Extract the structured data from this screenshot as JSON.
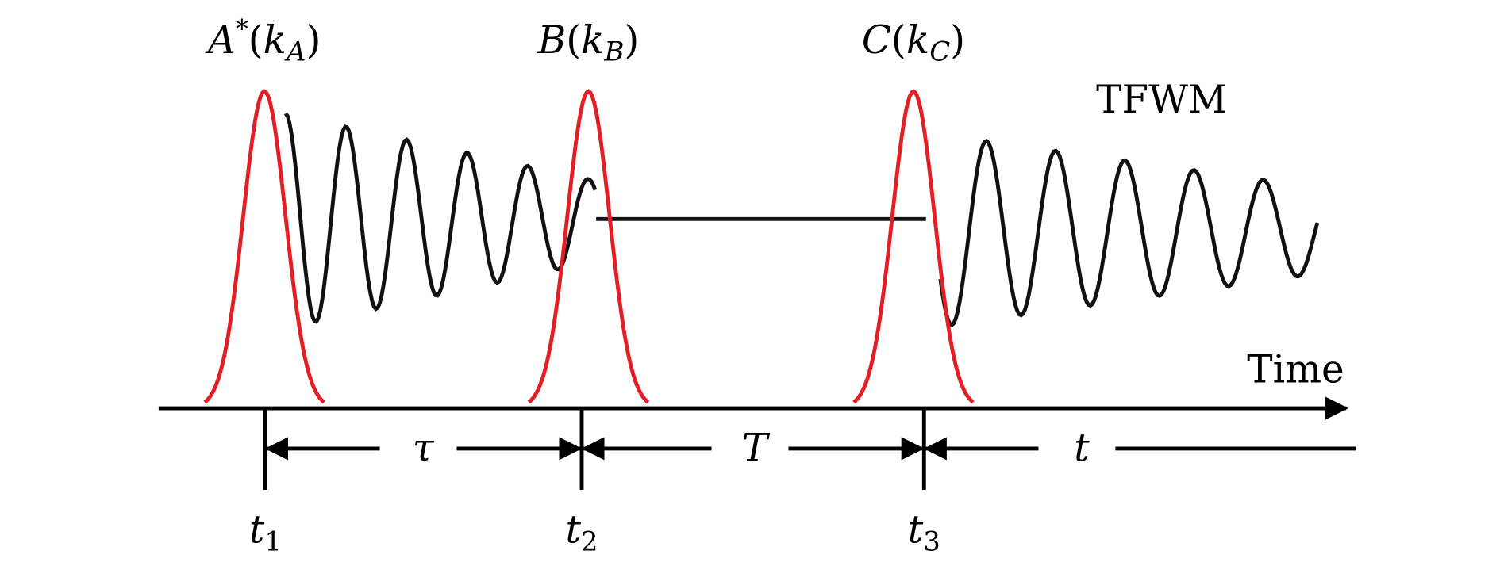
{
  "pulses": [
    {
      "symbol": "A",
      "sup": "*",
      "open": "(",
      "k": "k",
      "sub": "A",
      "close": ")"
    },
    {
      "symbol": "B",
      "sup": "",
      "open": "(",
      "k": "k",
      "sub": "B",
      "close": ")"
    },
    {
      "symbol": "C",
      "sup": "",
      "open": "(",
      "k": "k",
      "sub": "C",
      "close": ")"
    }
  ],
  "signal_label": "TFWM",
  "axis_label": "Time",
  "intervals": [
    "τ",
    "T",
    "t"
  ],
  "times": [
    {
      "symbol": "t",
      "sub": "1"
    },
    {
      "symbol": "t",
      "sub": "2"
    },
    {
      "symbol": "t",
      "sub": "3"
    }
  ]
}
